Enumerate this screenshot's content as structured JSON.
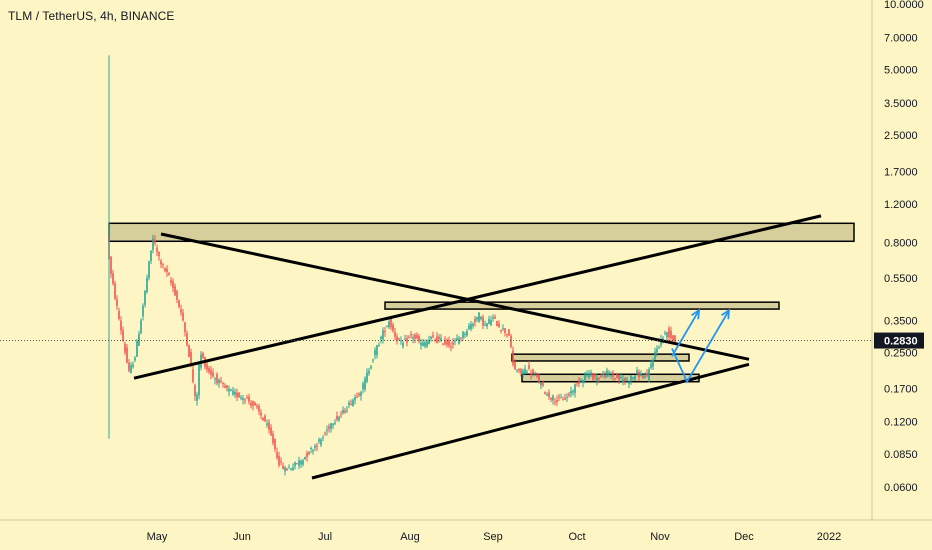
{
  "header": {
    "symbol_title": "TLM / TetherUS, 4h, BINANCE"
  },
  "colors": {
    "background": "#fdf6c4",
    "up_candle": "#26a69a",
    "down_candle": "#ef5350",
    "zone_fill": "#d6cf9c",
    "zone_stroke": "#000000",
    "trendline": "#000000",
    "projection": "#2196f3",
    "price_tag": "#131722"
  },
  "chart_data": {
    "type": "candlestick",
    "yscale": "log",
    "ylim": [
      0.05,
      10.0
    ],
    "y_ticks": [
      "10.0000",
      "7.0000",
      "5.0000",
      "3.5000",
      "2.5000",
      "1.7000",
      "1.2000",
      "0.8000",
      "0.5500",
      "0.3500",
      "0.2500",
      "0.1700",
      "0.1200",
      "0.0850",
      "0.0600"
    ],
    "x_ticks": [
      "May",
      "Jun",
      "Jul",
      "Aug",
      "Sep",
      "Oct",
      "Nov",
      "Dec",
      "2022"
    ],
    "current_price": "0.2830",
    "price_path": [
      [
        0,
        0.86
      ],
      [
        3,
        0.6
      ],
      [
        8,
        0.45
      ],
      [
        15,
        0.3
      ],
      [
        22,
        0.2
      ],
      [
        28,
        0.24
      ],
      [
        35,
        0.38
      ],
      [
        40,
        0.55
      ],
      [
        46,
        0.84
      ],
      [
        50,
        0.72
      ],
      [
        55,
        0.63
      ],
      [
        62,
        0.55
      ],
      [
        68,
        0.47
      ],
      [
        74,
        0.38
      ],
      [
        80,
        0.28
      ],
      [
        85,
        0.2
      ],
      [
        89,
        0.14
      ],
      [
        93,
        0.25
      ],
      [
        100,
        0.21
      ],
      [
        108,
        0.19
      ],
      [
        118,
        0.17
      ],
      [
        128,
        0.16
      ],
      [
        138,
        0.155
      ],
      [
        148,
        0.14
      ],
      [
        158,
        0.12
      ],
      [
        165,
        0.1
      ],
      [
        172,
        0.078
      ],
      [
        178,
        0.072
      ],
      [
        186,
        0.075
      ],
      [
        195,
        0.08
      ],
      [
        205,
        0.09
      ],
      [
        215,
        0.1
      ],
      [
        225,
        0.12
      ],
      [
        235,
        0.13
      ],
      [
        245,
        0.15
      ],
      [
        255,
        0.17
      ],
      [
        262,
        0.21
      ],
      [
        268,
        0.25
      ],
      [
        275,
        0.3
      ],
      [
        282,
        0.35
      ],
      [
        288,
        0.3
      ],
      [
        295,
        0.27
      ],
      [
        305,
        0.3
      ],
      [
        315,
        0.27
      ],
      [
        325,
        0.29
      ],
      [
        335,
        0.28
      ],
      [
        345,
        0.27
      ],
      [
        355,
        0.3
      ],
      [
        365,
        0.34
      ],
      [
        372,
        0.37
      ],
      [
        378,
        0.33
      ],
      [
        385,
        0.36
      ],
      [
        395,
        0.32
      ],
      [
        403,
        0.3
      ],
      [
        405,
        0.22
      ],
      [
        412,
        0.2
      ],
      [
        420,
        0.21
      ],
      [
        430,
        0.19
      ],
      [
        440,
        0.16
      ],
      [
        450,
        0.15
      ],
      [
        460,
        0.155
      ],
      [
        470,
        0.18
      ],
      [
        480,
        0.2
      ],
      [
        490,
        0.19
      ],
      [
        500,
        0.2
      ],
      [
        510,
        0.19
      ],
      [
        520,
        0.185
      ],
      [
        530,
        0.2
      ],
      [
        540,
        0.19
      ],
      [
        545,
        0.23
      ],
      [
        550,
        0.26
      ],
      [
        555,
        0.29
      ],
      [
        560,
        0.31
      ],
      [
        567,
        0.283
      ]
    ],
    "zones": [
      {
        "x_start": 0,
        "x_end": 745,
        "y_low": 0.81,
        "y_high": 0.98
      },
      {
        "x_start": 276,
        "x_end": 670,
        "y_low": 0.395,
        "y_high": 0.425
      },
      {
        "x_start": 403,
        "x_end": 580,
        "y_low": 0.228,
        "y_high": 0.245
      },
      {
        "x_start": 413,
        "x_end": 590,
        "y_low": 0.183,
        "y_high": 0.198
      }
    ],
    "trendlines": [
      {
        "x1": 52,
        "y1": 0.875,
        "x2": 640,
        "y2": 0.232
      },
      {
        "x1": 25,
        "y1": 0.19,
        "x2": 712,
        "y2": 1.06
      },
      {
        "x1": 203,
        "y1": 0.066,
        "x2": 640,
        "y2": 0.22
      }
    ],
    "projections": [
      {
        "points": [
          [
            563,
            0.24
          ],
          [
            590,
            0.39
          ]
        ]
      },
      {
        "points": [
          [
            563,
            0.26
          ],
          [
            578,
            0.183
          ],
          [
            620,
            0.39
          ]
        ]
      }
    ]
  }
}
